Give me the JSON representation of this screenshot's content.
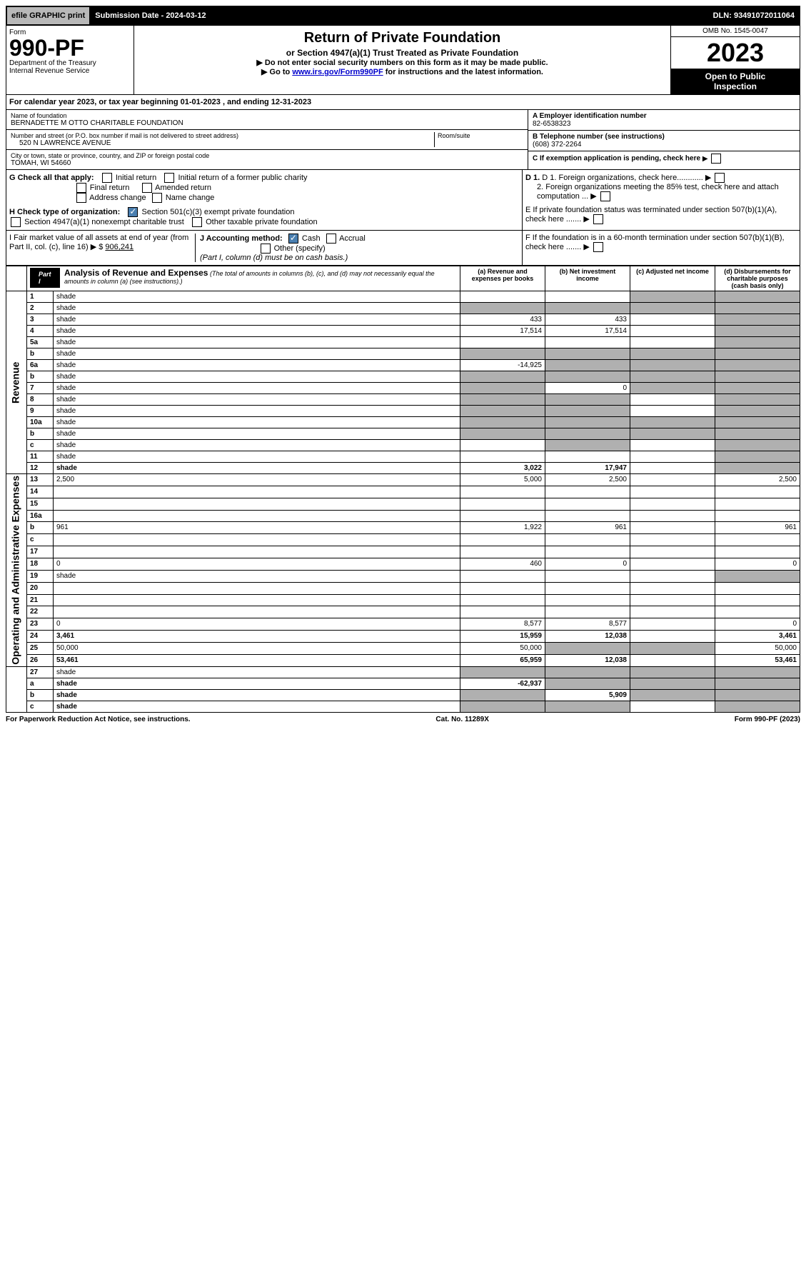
{
  "topbar": {
    "efile": "efile GRAPHIC print",
    "submission": "Submission Date - 2024-03-12",
    "dln": "DLN: 93491072011064"
  },
  "header": {
    "form_label": "Form",
    "form_number": "990-PF",
    "dept1": "Department of the Treasury",
    "dept2": "Internal Revenue Service",
    "title": "Return of Private Foundation",
    "subtitle": "or Section 4947(a)(1) Trust Treated as Private Foundation",
    "instr1": "▶ Do not enter social security numbers on this form as it may be made public.",
    "instr2a": "▶ Go to ",
    "instr2_link": "www.irs.gov/Form990PF",
    "instr2b": " for instructions and the latest information.",
    "omb": "OMB No. 1545-0047",
    "year": "2023",
    "inspection1": "Open to Public",
    "inspection2": "Inspection"
  },
  "calendar": "For calendar year 2023, or tax year beginning 01-01-2023                           , and ending 12-31-2023",
  "foundation": {
    "name_label": "Name of foundation",
    "name": "BERNADETTE M OTTO CHARITABLE FOUNDATION",
    "addr_label": "Number and street (or P.O. box number if mail is not delivered to street address)",
    "addr": "520 N LAWRENCE AVENUE",
    "room_label": "Room/suite",
    "city_label": "City or town, state or province, country, and ZIP or foreign postal code",
    "city": "TOMAH, WI  54660"
  },
  "right_info": {
    "a_label": "A Employer identification number",
    "a_value": "82-6538323",
    "b_label": "B Telephone number (see instructions)",
    "b_value": "(608) 372-2264",
    "c_label": "C If exemption application is pending, check here",
    "d1": "D 1. Foreign organizations, check here............",
    "d2": "2. Foreign organizations meeting the 85% test, check here and attach computation ...",
    "e": "E  If private foundation status was terminated under section 507(b)(1)(A), check here .......",
    "f": "F  If the foundation is in a 60-month termination under section 507(b)(1)(B), check here ......."
  },
  "g": {
    "label": "G Check all that apply:",
    "initial": "Initial return",
    "initial_former": "Initial return of a former public charity",
    "final": "Final return",
    "amended": "Amended return",
    "address": "Address change",
    "name": "Name change"
  },
  "h": {
    "label": "H Check type of organization:",
    "exempt": "Section 501(c)(3) exempt private foundation",
    "nonexempt": "Section 4947(a)(1) nonexempt charitable trust",
    "other": "Other taxable private foundation"
  },
  "i": {
    "label": "I Fair market value of all assets at end of year (from Part II, col. (c), line 16) ▶ $",
    "value": "906,241"
  },
  "j": {
    "label": "J Accounting method:",
    "cash": "Cash",
    "accrual": "Accrual",
    "other": "Other (specify)",
    "note": "(Part I, column (d) must be on cash basis.)"
  },
  "part1": {
    "label": "Part I",
    "title": "Analysis of Revenue and Expenses",
    "sub": "(The total of amounts in columns (b), (c), and (d) may not necessarily equal the amounts in column (a) (see instructions).)"
  },
  "columns": {
    "a": "(a) Revenue and expenses per books",
    "b": "(b) Net investment income",
    "c": "(c) Adjusted net income",
    "d": "(d) Disbursements for charitable purposes (cash basis only)"
  },
  "sections": {
    "revenue": "Revenue",
    "expenses": "Operating and Administrative Expenses"
  },
  "rows": [
    {
      "n": "1",
      "d": "shade",
      "a": "",
      "b": "",
      "c": "shade"
    },
    {
      "n": "2",
      "d": "shade",
      "a": "shade",
      "b": "shade",
      "c": "shade",
      "bold_not": true
    },
    {
      "n": "3",
      "d": "shade",
      "a": "433",
      "b": "433",
      "c": ""
    },
    {
      "n": "4",
      "d": "shade",
      "a": "17,514",
      "b": "17,514",
      "c": ""
    },
    {
      "n": "5a",
      "d": "shade",
      "a": "",
      "b": "",
      "c": ""
    },
    {
      "n": "b",
      "d": "shade",
      "a": "shade",
      "b": "shade",
      "c": "shade"
    },
    {
      "n": "6a",
      "d": "shade",
      "a": "-14,925",
      "b": "shade",
      "c": "shade"
    },
    {
      "n": "b",
      "d": "shade",
      "a": "shade",
      "b": "shade",
      "c": "shade"
    },
    {
      "n": "7",
      "d": "shade",
      "a": "shade",
      "b": "0",
      "c": "shade"
    },
    {
      "n": "8",
      "d": "shade",
      "a": "shade",
      "b": "shade",
      "c": ""
    },
    {
      "n": "9",
      "d": "shade",
      "a": "shade",
      "b": "shade",
      "c": ""
    },
    {
      "n": "10a",
      "d": "shade",
      "a": "shade",
      "b": "shade",
      "c": "shade"
    },
    {
      "n": "b",
      "d": "shade",
      "a": "shade",
      "b": "shade",
      "c": "shade"
    },
    {
      "n": "c",
      "d": "shade",
      "a": "",
      "b": "shade",
      "c": ""
    },
    {
      "n": "11",
      "d": "shade",
      "a": "",
      "b": "",
      "c": ""
    },
    {
      "n": "12",
      "d": "shade",
      "a": "3,022",
      "b": "17,947",
      "c": "",
      "bold": true
    }
  ],
  "exp_rows": [
    {
      "n": "13",
      "d": "2,500",
      "a": "5,000",
      "b": "2,500",
      "c": ""
    },
    {
      "n": "14",
      "d": "",
      "a": "",
      "b": "",
      "c": ""
    },
    {
      "n": "15",
      "d": "",
      "a": "",
      "b": "",
      "c": ""
    },
    {
      "n": "16a",
      "d": "",
      "a": "",
      "b": "",
      "c": ""
    },
    {
      "n": "b",
      "d": "961",
      "a": "1,922",
      "b": "961",
      "c": ""
    },
    {
      "n": "c",
      "d": "",
      "a": "",
      "b": "",
      "c": ""
    },
    {
      "n": "17",
      "d": "",
      "a": "",
      "b": "",
      "c": ""
    },
    {
      "n": "18",
      "d": "0",
      "a": "460",
      "b": "0",
      "c": ""
    },
    {
      "n": "19",
      "d": "shade",
      "a": "",
      "b": "",
      "c": ""
    },
    {
      "n": "20",
      "d": "",
      "a": "",
      "b": "",
      "c": ""
    },
    {
      "n": "21",
      "d": "",
      "a": "",
      "b": "",
      "c": ""
    },
    {
      "n": "22",
      "d": "",
      "a": "",
      "b": "",
      "c": ""
    },
    {
      "n": "23",
      "d": "0",
      "a": "8,577",
      "b": "8,577",
      "c": ""
    },
    {
      "n": "24",
      "d": "3,461",
      "a": "15,959",
      "b": "12,038",
      "c": "",
      "bold": true
    },
    {
      "n": "25",
      "d": "50,000",
      "a": "50,000",
      "b": "shade",
      "c": "shade"
    },
    {
      "n": "26",
      "d": "53,461",
      "a": "65,959",
      "b": "12,038",
      "c": "",
      "bold": true
    }
  ],
  "final_rows": [
    {
      "n": "27",
      "d": "shade",
      "a": "shade",
      "b": "shade",
      "c": "shade"
    },
    {
      "n": "a",
      "d": "shade",
      "a": "-62,937",
      "b": "shade",
      "c": "shade",
      "bold": true
    },
    {
      "n": "b",
      "d": "shade",
      "a": "shade",
      "b": "5,909",
      "c": "shade",
      "bold": true
    },
    {
      "n": "c",
      "d": "shade",
      "a": "shade",
      "b": "shade",
      "c": "",
      "bold": true
    }
  ],
  "footer": {
    "left": "For Paperwork Reduction Act Notice, see instructions.",
    "center": "Cat. No. 11289X",
    "right": "Form 990-PF (2023)"
  }
}
